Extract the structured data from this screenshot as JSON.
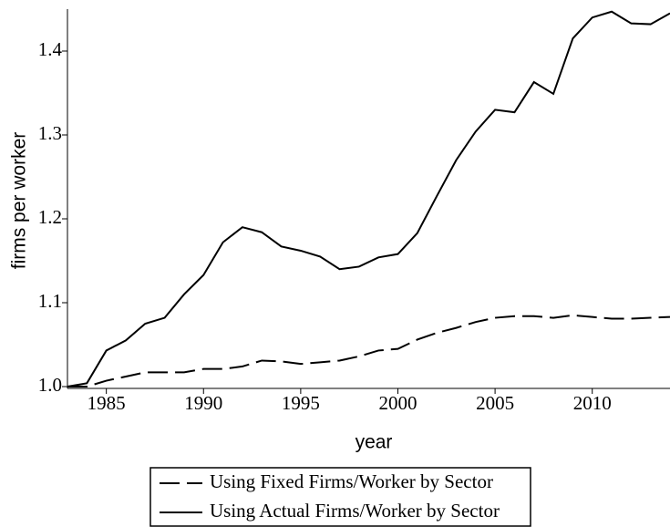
{
  "chart_data": {
    "type": "line",
    "xlabel": "year",
    "ylabel": "firms per worker",
    "x": [
      1983,
      1984,
      1985,
      1986,
      1987,
      1988,
      1989,
      1990,
      1991,
      1992,
      1993,
      1994,
      1995,
      1996,
      1997,
      1998,
      1999,
      2000,
      2001,
      2002,
      2003,
      2004,
      2005,
      2006,
      2007,
      2008,
      2009,
      2010,
      2011,
      2012,
      2013,
      2014
    ],
    "series": [
      {
        "name": "Using Fixed Firms/Worker by Sector",
        "color": "#000000",
        "line_style": "dashed",
        "values": [
          1.0,
          1.0,
          1.007,
          1.012,
          1.017,
          1.017,
          1.017,
          1.021,
          1.021,
          1.024,
          1.031,
          1.03,
          1.027,
          1.029,
          1.031,
          1.036,
          1.043,
          1.045,
          1.056,
          1.064,
          1.07,
          1.077,
          1.082,
          1.084,
          1.084,
          1.082,
          1.085,
          1.083,
          1.081,
          1.081,
          1.082,
          1.083
        ]
      },
      {
        "name": "Using Actual Firms/Worker by Sector",
        "color": "#000000",
        "line_style": "solid",
        "values": [
          1.0,
          1.004,
          1.043,
          1.055,
          1.075,
          1.082,
          1.11,
          1.133,
          1.172,
          1.19,
          1.184,
          1.167,
          1.162,
          1.155,
          1.14,
          1.143,
          1.154,
          1.158,
          1.183,
          1.227,
          1.27,
          1.304,
          1.33,
          1.327,
          1.363,
          1.349,
          1.415,
          1.44,
          1.447,
          1.433,
          1.432,
          1.445
        ]
      }
    ],
    "xlim": [
      1983,
      2014
    ],
    "xticks": [
      1985,
      1990,
      1995,
      2000,
      2005,
      2010
    ],
    "ylim": [
      1,
      1.45
    ],
    "yticks": [
      {
        "value": 1,
        "label": "1.0"
      },
      1.1,
      1.2,
      1.3,
      1.4
    ],
    "grid": false,
    "legend": "bottom"
  }
}
